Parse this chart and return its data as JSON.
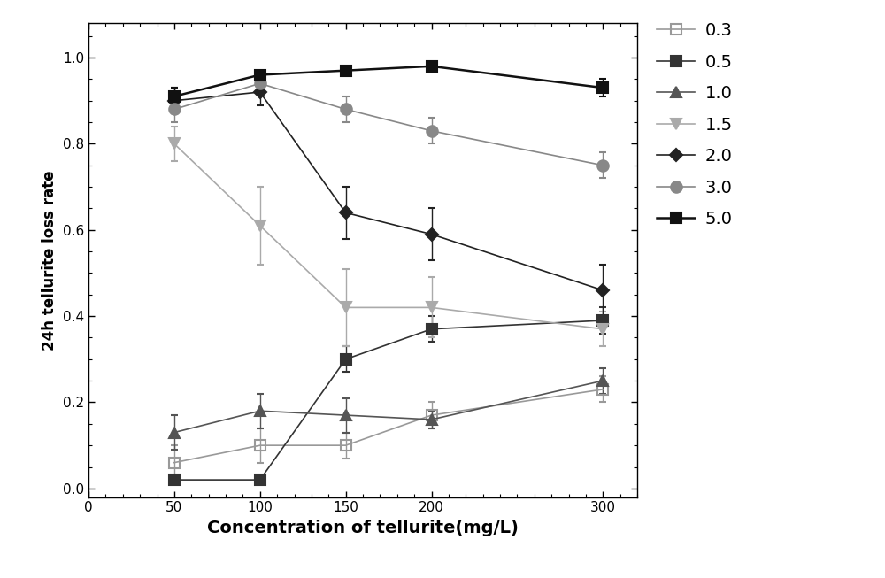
{
  "x": [
    50,
    100,
    150,
    200,
    300
  ],
  "series_order": [
    "0.3",
    "0.5",
    "1.0",
    "1.5",
    "2.0",
    "3.0",
    "5.0"
  ],
  "series": {
    "0.3": {
      "y": [
        0.06,
        0.1,
        0.1,
        0.17,
        0.23
      ],
      "yerr": [
        0.04,
        0.04,
        0.03,
        0.03,
        0.03
      ],
      "color": "#999999",
      "marker": "s",
      "fillstyle": "none",
      "label": "0.3",
      "linewidth": 1.2
    },
    "0.5": {
      "y": [
        0.02,
        0.02,
        0.3,
        0.37,
        0.39
      ],
      "yerr": [
        0.01,
        0.01,
        0.03,
        0.03,
        0.03
      ],
      "color": "#333333",
      "marker": "s",
      "fillstyle": "full",
      "label": "0.5",
      "linewidth": 1.2
    },
    "1.0": {
      "y": [
        0.13,
        0.18,
        0.17,
        0.16,
        0.25
      ],
      "yerr": [
        0.04,
        0.04,
        0.04,
        0.02,
        0.03
      ],
      "color": "#555555",
      "marker": "^",
      "fillstyle": "full",
      "label": "1.0",
      "linewidth": 1.2
    },
    "1.5": {
      "y": [
        0.8,
        0.61,
        0.42,
        0.42,
        0.37
      ],
      "yerr": [
        0.04,
        0.09,
        0.09,
        0.07,
        0.04
      ],
      "color": "#aaaaaa",
      "marker": "v",
      "fillstyle": "full",
      "label": "1.5",
      "linewidth": 1.2
    },
    "2.0": {
      "y": [
        0.9,
        0.92,
        0.64,
        0.59,
        0.46
      ],
      "yerr": [
        0.03,
        0.03,
        0.06,
        0.06,
        0.06
      ],
      "color": "#222222",
      "marker": "D",
      "fillstyle": "full",
      "label": "2.0",
      "linewidth": 1.2
    },
    "3.0": {
      "y": [
        0.88,
        0.94,
        0.88,
        0.83,
        0.75
      ],
      "yerr": [
        0.03,
        0.02,
        0.03,
        0.03,
        0.03
      ],
      "color": "#888888",
      "marker": "o",
      "fillstyle": "full",
      "label": "3.0",
      "linewidth": 1.2
    },
    "5.0": {
      "y": [
        0.91,
        0.96,
        0.97,
        0.98,
        0.93
      ],
      "yerr": [
        0.02,
        0.01,
        0.01,
        0.01,
        0.02
      ],
      "color": "#111111",
      "marker": "s",
      "fillstyle": "full",
      "label": "5.0",
      "linewidth": 1.8
    }
  },
  "xlabel": "Concentration of tellurite(mg/L)",
  "ylabel": "24h tellurite loss rate",
  "xlim": [
    25,
    320
  ],
  "ylim": [
    -0.02,
    1.08
  ],
  "xticks": [
    0,
    50,
    100,
    150,
    200,
    300
  ],
  "yticks": [
    0.0,
    0.2,
    0.4,
    0.6,
    0.8,
    1.0
  ],
  "background_color": "#ffffff",
  "spine_color": "#000000",
  "figwidth": 10.0,
  "figheight": 6.53,
  "dpi": 100
}
